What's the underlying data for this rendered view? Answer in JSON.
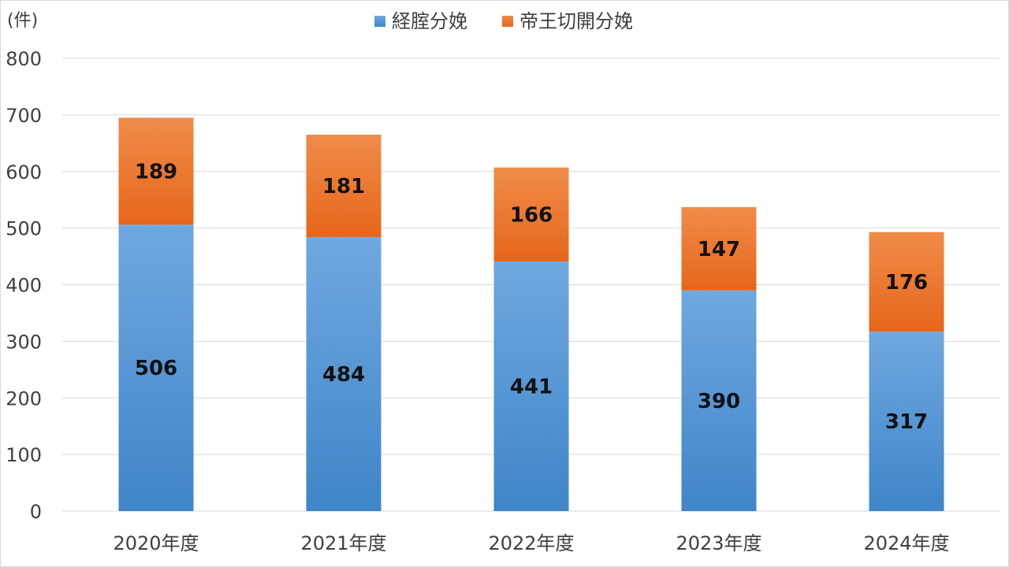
{
  "chart_data": {
    "type": "bar",
    "stacked": true,
    "unit_label": "(件)",
    "categories": [
      "2020年度",
      "2021年度",
      "2022年度",
      "2023年度",
      "2024年度"
    ],
    "series": [
      {
        "name": "経腟分娩",
        "values": [
          506,
          484,
          441,
          390,
          317
        ],
        "color": "#5b9bd5"
      },
      {
        "name": "帝王切開分娩",
        "values": [
          189,
          181,
          166,
          147,
          176
        ],
        "color": "#ed7d31"
      }
    ],
    "ylim": [
      0,
      800
    ],
    "yticks": [
      0,
      100,
      200,
      300,
      400,
      500,
      600,
      700,
      800
    ],
    "yticks_text": [
      "0",
      "100",
      "200",
      "300",
      "400",
      "500",
      "600",
      "700",
      "800"
    ],
    "grid": true,
    "legend_position": "top-center",
    "data_labels": true,
    "xlabel": "",
    "ylabel": ""
  }
}
